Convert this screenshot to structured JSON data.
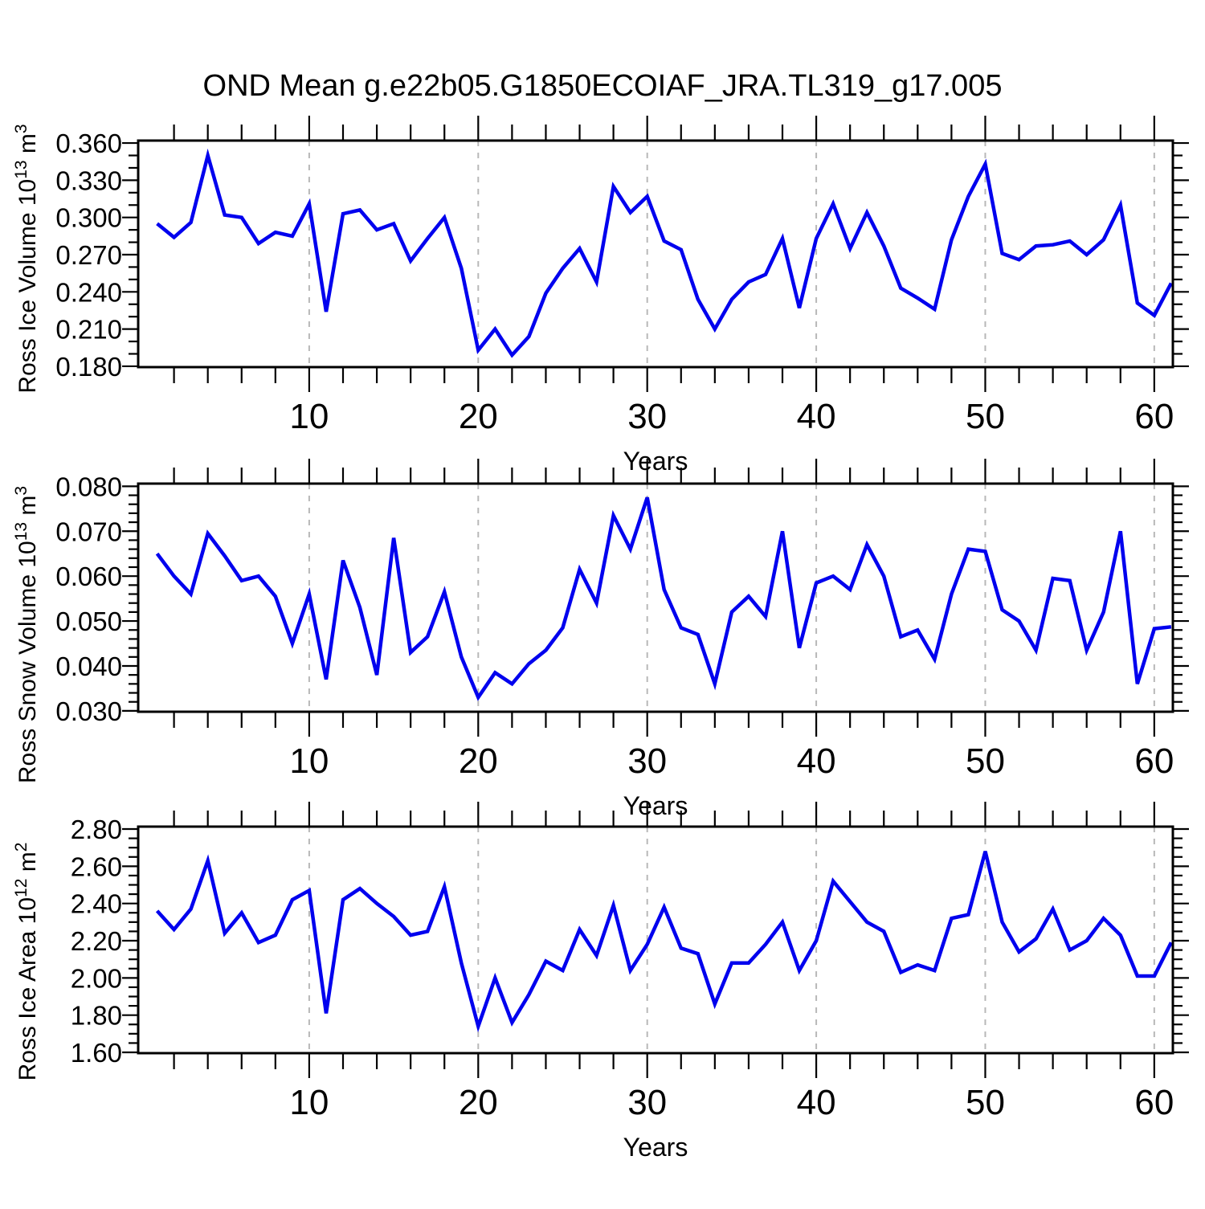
{
  "title": "OND Mean g.e22b05.G1850ECOIAF_JRA.TL319_g17.005",
  "style": {
    "line_color": "#0000ee",
    "grid_color": "#b8b8b8",
    "axis_color": "#000000",
    "background": "#ffffff"
  },
  "x_axis": {
    "label": "Years",
    "major_ticks": [
      10,
      20,
      30,
      40,
      50,
      60
    ],
    "minor_step": 2,
    "xlim": [
      -0.12,
      61.1
    ]
  },
  "years": [
    1,
    2,
    3,
    4,
    5,
    6,
    7,
    8,
    9,
    10,
    11,
    12,
    13,
    14,
    15,
    16,
    17,
    18,
    19,
    20,
    21,
    22,
    23,
    24,
    25,
    26,
    27,
    28,
    29,
    30,
    31,
    32,
    33,
    34,
    35,
    36,
    37,
    38,
    39,
    40,
    41,
    42,
    43,
    44,
    45,
    46,
    47,
    48,
    49,
    50,
    51,
    52,
    53,
    54,
    55,
    56,
    57,
    58,
    59,
    60,
    61
  ],
  "chart_data": [
    {
      "type": "line",
      "name": "ross-ice-volume",
      "ylabel_text": "Ross Ice Volume 10^13 m^3",
      "ylabel_parts": [
        {
          "t": "Ross Ice Volume 10"
        },
        {
          "t": "13",
          "sup": true
        },
        {
          "t": " m"
        },
        {
          "t": "3",
          "sup": true
        }
      ],
      "ylim": [
        0.1793,
        0.362
      ],
      "yticks": [
        0.18,
        0.21,
        0.24,
        0.27,
        0.3,
        0.33,
        0.36
      ],
      "ytick_decimals": 3,
      "yminor_step": 0.01,
      "grid": "dashed-vertical-decades",
      "legend": "none",
      "values": [
        0.295,
        0.284,
        0.296,
        0.35,
        0.302,
        0.3,
        0.279,
        0.288,
        0.285,
        0.311,
        0.224,
        0.303,
        0.306,
        0.29,
        0.295,
        0.265,
        0.283,
        0.3,
        0.259,
        0.193,
        0.21,
        0.189,
        0.204,
        0.239,
        0.259,
        0.275,
        0.248,
        0.325,
        0.304,
        0.317,
        0.281,
        0.274,
        0.234,
        0.21,
        0.234,
        0.248,
        0.254,
        0.283,
        0.227,
        0.283,
        0.311,
        0.275,
        0.304,
        0.277,
        0.243,
        0.235,
        0.226,
        0.282,
        0.317,
        0.343,
        0.271,
        0.266,
        0.277,
        0.278,
        0.281,
        0.27,
        0.282,
        0.31,
        0.231,
        0.221,
        0.247
      ]
    },
    {
      "type": "line",
      "name": "ross-snow-volume",
      "ylabel_text": "Ross Snow Volume 10^13 m^3",
      "ylabel_parts": [
        {
          "t": "Ross Snow Volume 10"
        },
        {
          "t": "13",
          "sup": true
        },
        {
          "t": " m"
        },
        {
          "t": "3",
          "sup": true
        }
      ],
      "ylim": [
        0.0298,
        0.0806
      ],
      "yticks": [
        0.03,
        0.04,
        0.05,
        0.06,
        0.07,
        0.08
      ],
      "ytick_decimals": 3,
      "yminor_step": 0.002,
      "grid": "dashed-vertical-decades",
      "legend": "none",
      "values": [
        0.065,
        0.06,
        0.056,
        0.0695,
        0.0645,
        0.059,
        0.06,
        0.0555,
        0.045,
        0.056,
        0.037,
        0.0635,
        0.053,
        0.038,
        0.0685,
        0.043,
        0.0465,
        0.0565,
        0.042,
        0.033,
        0.0385,
        0.036,
        0.0405,
        0.0435,
        0.0485,
        0.0615,
        0.054,
        0.0735,
        0.066,
        0.0775,
        0.057,
        0.0485,
        0.047,
        0.036,
        0.052,
        0.0555,
        0.051,
        0.07,
        0.044,
        0.0585,
        0.06,
        0.057,
        0.067,
        0.06,
        0.0465,
        0.048,
        0.0415,
        0.056,
        0.066,
        0.0655,
        0.0525,
        0.05,
        0.0435,
        0.0595,
        0.059,
        0.0435,
        0.052,
        0.07,
        0.036,
        0.0483,
        0.0487
      ]
    },
    {
      "type": "line",
      "name": "ross-ice-area",
      "ylabel_text": "Ross Ice Area 10^12 m^2",
      "ylabel_parts": [
        {
          "t": "Ross Ice Area 10"
        },
        {
          "t": "12",
          "sup": true
        },
        {
          "t": " m"
        },
        {
          "t": "2",
          "sup": true
        }
      ],
      "ylim": [
        1.5957,
        2.813
      ],
      "yticks": [
        1.6,
        1.8,
        2.0,
        2.2,
        2.4,
        2.6,
        2.8
      ],
      "ytick_decimals": 2,
      "yminor_step": 0.05,
      "grid": "dashed-vertical-decades",
      "legend": "none",
      "values": [
        2.36,
        2.26,
        2.37,
        2.63,
        2.24,
        2.35,
        2.19,
        2.23,
        2.42,
        2.47,
        1.81,
        2.42,
        2.48,
        2.4,
        2.33,
        2.23,
        2.25,
        2.49,
        2.08,
        1.74,
        2.0,
        1.76,
        1.91,
        2.09,
        2.04,
        2.26,
        2.12,
        2.39,
        2.04,
        2.18,
        2.38,
        2.16,
        2.13,
        1.86,
        2.08,
        2.08,
        2.18,
        2.3,
        2.04,
        2.2,
        2.52,
        2.41,
        2.3,
        2.25,
        2.03,
        2.07,
        2.04,
        2.32,
        2.34,
        2.68,
        2.3,
        2.14,
        2.21,
        2.37,
        2.15,
        2.2,
        2.32,
        2.23,
        2.01,
        2.01,
        2.19
      ]
    }
  ]
}
